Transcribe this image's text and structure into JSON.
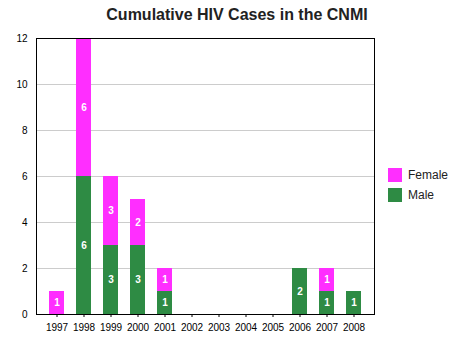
{
  "chart_data": {
    "type": "bar",
    "title": "Cumulative HIV Cases in the CNMI",
    "categories": [
      "1997",
      "1998",
      "1999",
      "2000",
      "2001",
      "2002",
      "2003",
      "2004",
      "2005",
      "2006",
      "2007",
      "2008"
    ],
    "series": [
      {
        "name": "Male",
        "color": "#2E8B44",
        "values": [
          0,
          6,
          3,
          3,
          1,
          0,
          0,
          0,
          0,
          2,
          1,
          1
        ]
      },
      {
        "name": "Female",
        "color": "#FF2EFF",
        "values": [
          1,
          6,
          3,
          2,
          1,
          0,
          0,
          0,
          0,
          0,
          1,
          0
        ]
      }
    ],
    "stacked": true,
    "data_labels": true,
    "ylim": [
      0,
      12
    ],
    "yticks": [
      0,
      2,
      4,
      6,
      8,
      10,
      12
    ],
    "grid": true,
    "legend": "right"
  }
}
